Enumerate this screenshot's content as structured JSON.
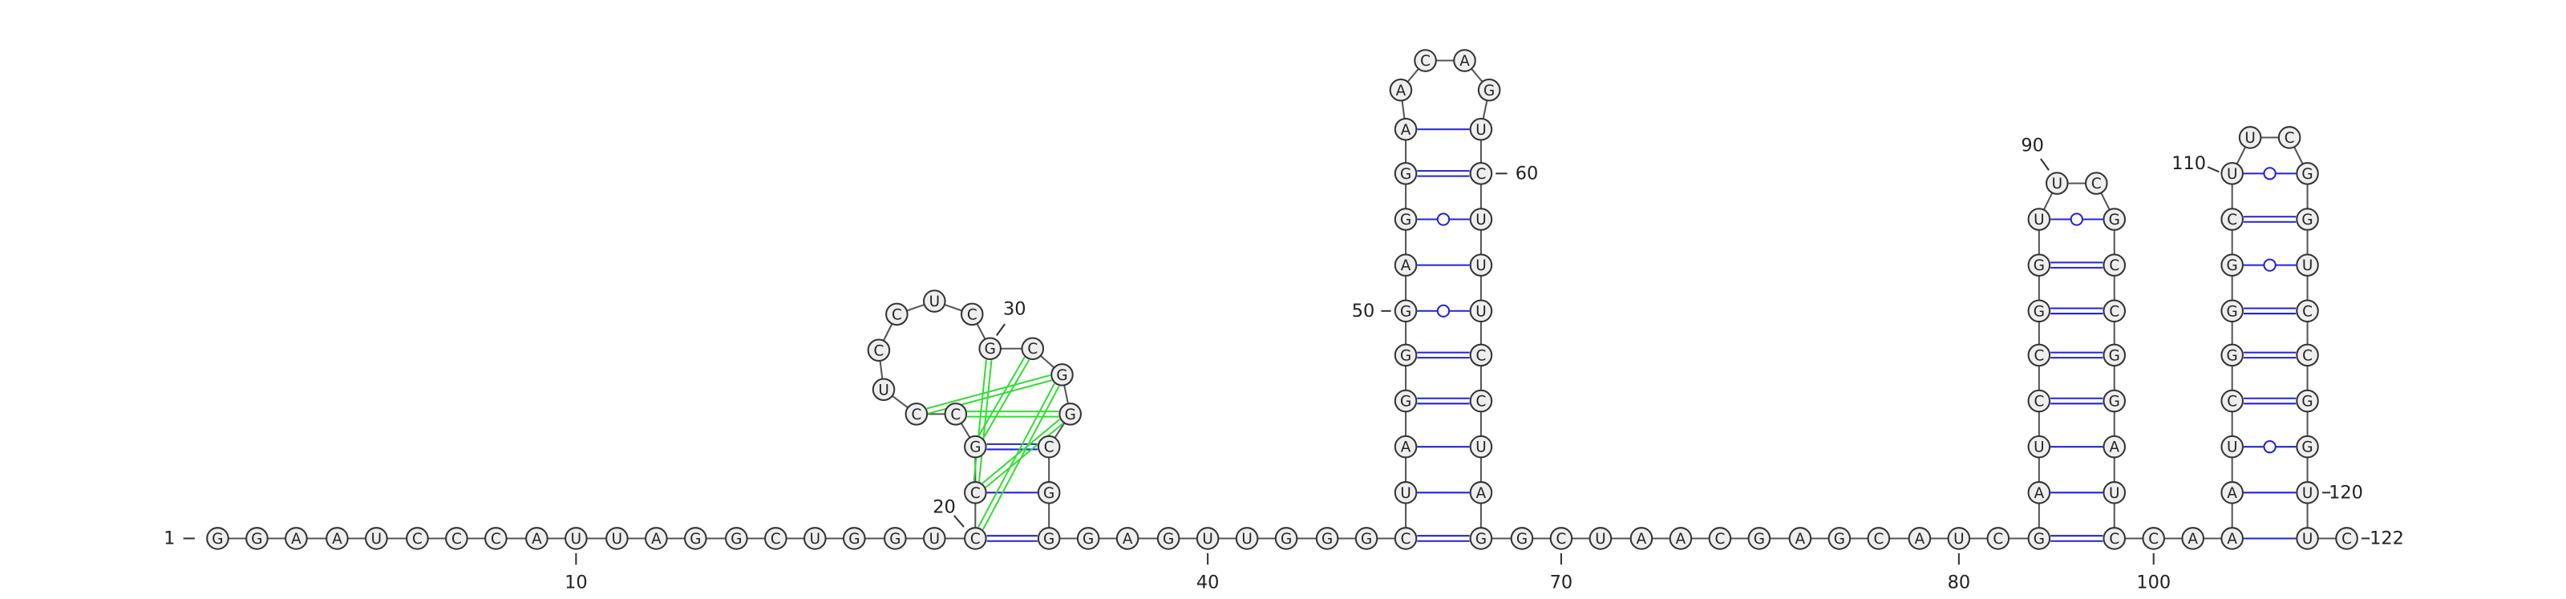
{
  "nucleotides": [
    "G",
    "G",
    "A",
    "A",
    "U",
    "C",
    "C",
    "C",
    "A",
    "U",
    "U",
    "A",
    "G",
    "G",
    "C",
    "U",
    "G",
    "G",
    "U",
    "C",
    "C",
    "G",
    "C",
    "C",
    "U",
    "C",
    "C",
    "U",
    "C",
    "G",
    "C",
    "G",
    "G",
    "C",
    "G",
    "G",
    "G",
    "A",
    "G",
    "U",
    "U",
    "G",
    "G",
    "G",
    "C",
    "U",
    "A",
    "G",
    "G",
    "G",
    "A",
    "G",
    "G",
    "A",
    "A",
    "C",
    "A",
    "G",
    "U",
    "C",
    "U",
    "U",
    "U",
    "C",
    "C",
    "U",
    "A",
    "G",
    "G",
    "C",
    "U",
    "A",
    "A",
    "C",
    "G",
    "A",
    "G",
    "C",
    "A",
    "U",
    "C",
    "G",
    "A",
    "U",
    "C",
    "C",
    "G",
    "G",
    "U",
    "U",
    "C",
    "G",
    "C",
    "C",
    "G",
    "G",
    "A",
    "U",
    "C",
    "C",
    "A",
    "A",
    "A",
    "U",
    "C",
    "G",
    "G",
    "G",
    "C",
    "U",
    "U",
    "C",
    "G",
    "G",
    "U",
    "C",
    "C",
    "G",
    "G",
    "U",
    "U",
    "C"
  ],
  "numbers": [
    "1",
    "10",
    "20",
    "30",
    "40",
    "50",
    "60",
    "70",
    "80",
    "90",
    "100",
    "110",
    "120",
    "122"
  ]
}
